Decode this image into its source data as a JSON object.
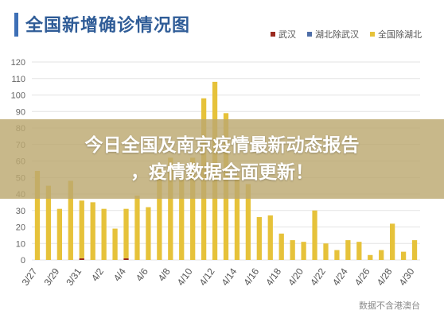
{
  "header": {
    "title": "全国新增确诊情况图"
  },
  "legend": [
    {
      "label": "武汉",
      "color": "#9a2a1f"
    },
    {
      "label": "湖北除武汉",
      "color": "#4f6fa8"
    },
    {
      "label": "全国除湖北",
      "color": "#e6c23a"
    }
  ],
  "overlay": {
    "line1": "今日全国及南京疫情最新动态报告",
    "line2": "，疫情数据全面更新！"
  },
  "source": "数据不含港澳台",
  "chart_data": {
    "type": "bar",
    "title": "全国新增确诊情况图",
    "xlabel": "",
    "ylabel": "",
    "ylim": [
      0,
      120
    ],
    "yticks": [
      0,
      10,
      20,
      30,
      40,
      50,
      60,
      70,
      80,
      90,
      100,
      110,
      120
    ],
    "grid": true,
    "legend_position": "top-right",
    "categories": [
      "3/27",
      "3/28",
      "3/29",
      "3/30",
      "3/31",
      "4/1",
      "4/2",
      "4/3",
      "4/4",
      "4/5",
      "4/6",
      "4/7",
      "4/8",
      "4/9",
      "4/10",
      "4/11",
      "4/12",
      "4/13",
      "4/14",
      "4/15",
      "4/16",
      "4/17",
      "4/18",
      "4/19",
      "4/20",
      "4/21",
      "4/22",
      "4/23",
      "4/24",
      "4/25",
      "4/26",
      "4/27",
      "4/28",
      "4/29",
      "4/30"
    ],
    "xtick_labels": [
      "3/27",
      "3/29",
      "3/31",
      "4/2",
      "4/4",
      "4/6",
      "4/8",
      "4/10",
      "4/12",
      "4/14",
      "4/16",
      "4/18",
      "4/20",
      "4/22",
      "4/24",
      "4/26",
      "4/28",
      "4/30"
    ],
    "series": [
      {
        "name": "武汉",
        "color": "#9a2a1f",
        "values": [
          0,
          0,
          0,
          0,
          1,
          0,
          0,
          0,
          1,
          0,
          0,
          0,
          0,
          0,
          0,
          0,
          0,
          0,
          0,
          0,
          0,
          0,
          0,
          0,
          0,
          0,
          0,
          0,
          0,
          0,
          0,
          0,
          0,
          0,
          0
        ]
      },
      {
        "name": "湖北除武汉",
        "color": "#4f6fa8",
        "values": [
          0,
          0,
          0,
          0,
          0,
          0,
          0,
          0,
          0,
          0,
          0,
          0,
          0,
          0,
          0,
          0,
          0,
          0,
          0,
          0,
          0,
          0,
          0,
          0,
          0,
          0,
          0,
          0,
          0,
          0,
          0,
          0,
          0,
          0,
          0
        ]
      },
      {
        "name": "全国除湖北",
        "color": "#e6c23a",
        "values": [
          54,
          45,
          31,
          48,
          35,
          35,
          31,
          19,
          30,
          39,
          32,
          55,
          62,
          52,
          62,
          98,
          108,
          89,
          51,
          46,
          26,
          27,
          16,
          12,
          11,
          30,
          10,
          6,
          12,
          11,
          3,
          6,
          22,
          5,
          12
        ]
      }
    ]
  }
}
